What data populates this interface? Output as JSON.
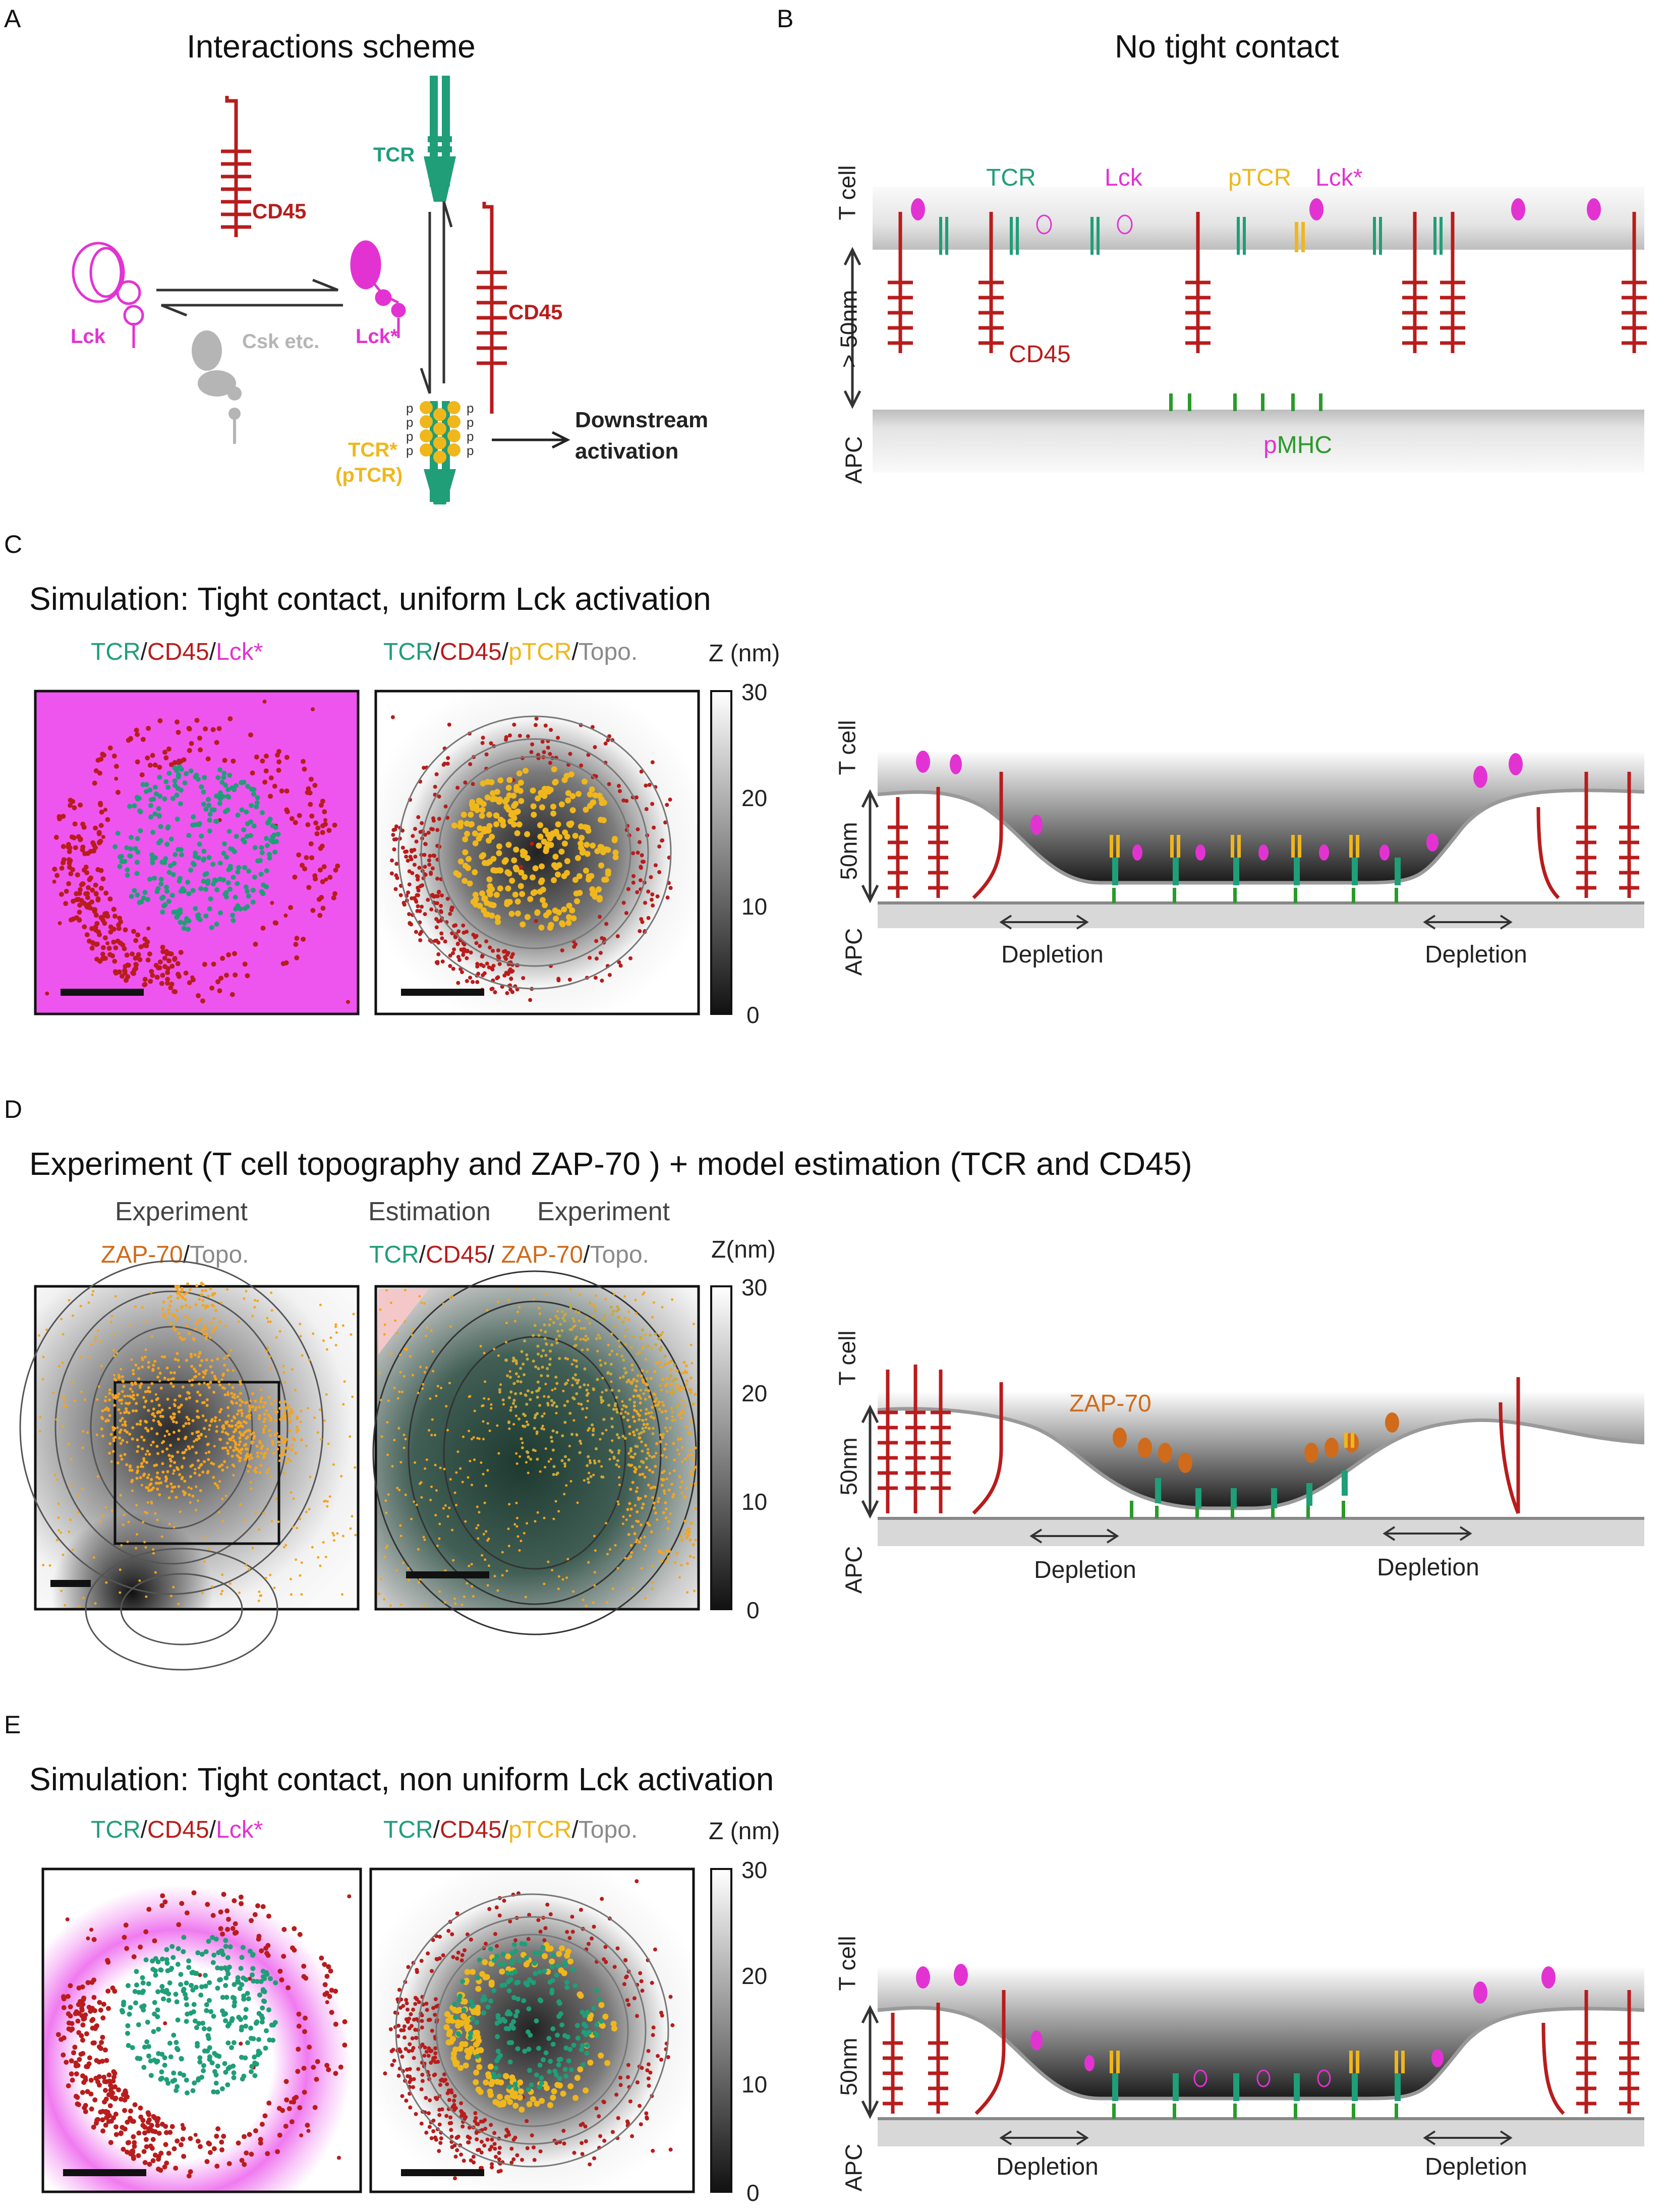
{
  "panels": {
    "A": {
      "letter": "A",
      "title": "Interactions scheme",
      "labels": {
        "tcr": "TCR",
        "cd45_top": "CD45",
        "cd45_right": "CD45",
        "lck": "Lck",
        "lck_star": "Lck*",
        "csk": "Csk etc.",
        "tcr_star": "TCR*",
        "ptcr": "(pTCR)",
        "downstream": "Downstream",
        "activation": "activation",
        "p": "p"
      }
    },
    "B": {
      "letter": "B",
      "title": "No tight contact",
      "labels": {
        "tcell": "T cell",
        "apc": "APC",
        "gap": "> 50nm",
        "tcr": "TCR",
        "lck": "Lck",
        "ptcr": "pTCR",
        "lck_star": "Lck*",
        "cd45": "CD45",
        "pmhc_p": "p",
        "pmhc_mhc": "MHC"
      }
    },
    "C": {
      "letter": "C",
      "title": "Simulation: Tight contact, uniform Lck activation",
      "map1": {
        "tcr": "TCR",
        "sep": "/",
        "cd45": "CD45",
        "lck": "Lck*"
      },
      "map2": {
        "tcr": "TCR",
        "cd45": "CD45",
        "ptcr": "pTCR",
        "topo": "Topo."
      },
      "colorbar": {
        "title": "Z (nm)",
        "ticks": [
          "30",
          "20",
          "10",
          "0"
        ]
      },
      "schematic": {
        "tcell": "T cell",
        "apc": "APC",
        "gap": "50nm",
        "depletion": "Depletion"
      }
    },
    "D": {
      "letter": "D",
      "title": "Experiment (T cell topography and ZAP-70 ) + model estimation (TCR and CD45)",
      "left": {
        "header": "Experiment",
        "zap": "ZAP-70",
        "topo": "Topo."
      },
      "right": {
        "header_est": "Estimation",
        "header_exp": "Experiment",
        "tcr": "TCR",
        "cd45": "CD45",
        "zap": "ZAP-70",
        "topo": "Topo."
      },
      "colorbar": {
        "title": "Z(nm)",
        "ticks": [
          "30",
          "20",
          "10",
          "0"
        ]
      },
      "schematic": {
        "tcell": "T cell",
        "apc": "APC",
        "gap": "50nm",
        "zap": "ZAP-70",
        "depletion": "Depletion"
      }
    },
    "E": {
      "letter": "E",
      "title": "Simulation: Tight contact, non uniform Lck activation",
      "map1": {
        "tcr": "TCR",
        "cd45": "CD45",
        "lck": "Lck*"
      },
      "map2": {
        "tcr": "TCR",
        "cd45": "CD45",
        "ptcr": "pTCR",
        "topo": "Topo."
      },
      "colorbar": {
        "title": "Z (nm)",
        "ticks": [
          "30",
          "20",
          "10",
          "0"
        ]
      },
      "schematic": {
        "tcell": "T cell",
        "apc": "APC",
        "gap": "50nm",
        "depletion": "Depletion"
      }
    }
  },
  "colors": {
    "tcr": "#1f9e78",
    "cd45": "#b81c1c",
    "lck": "#e233d2",
    "ptcr": "#f0b71c",
    "topo": "#8a8a8a",
    "zap": "#cf6b1b",
    "pmhc": "#2a9a2a"
  }
}
